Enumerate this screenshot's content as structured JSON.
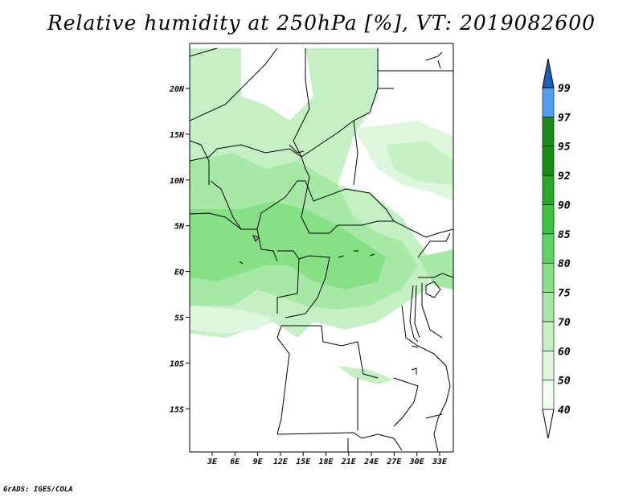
{
  "title": "Relative humidity at 250hPa [%], VT: 2019082600",
  "credit": "GrADS: IGES/COLA",
  "map": {
    "lat_labels": [
      "20N",
      "15N",
      "10N",
      "5N",
      "EQ",
      "5S",
      "10S",
      "15S"
    ],
    "lon_labels": [
      "3E",
      "6E",
      "9E",
      "12E",
      "15E",
      "18E",
      "21E",
      "24E",
      "27E",
      "30E",
      "33E"
    ]
  },
  "colorbar": {
    "levels": [
      "40",
      "50",
      "60",
      "70",
      "75",
      "80",
      "85",
      "90",
      "92",
      "95",
      "97",
      "99"
    ],
    "colors": [
      "#f0fff0",
      "#dcf7dc",
      "#c4f0c4",
      "#a6e8a6",
      "#86e086",
      "#5fd35f",
      "#3fc23f",
      "#27a927",
      "#159015",
      "#1a8a1a",
      "#4da0f0",
      "#2a78dc",
      "#1a5ec0"
    ]
  },
  "chart_data": {
    "type": "heatmap",
    "title": "Relative humidity at 250hPa [%], VT: 2019082600",
    "variable": "Relative humidity",
    "level": "250hPa",
    "units": "%",
    "valid_time": "2019082600",
    "lon_range": [
      0,
      35
    ],
    "lat_range": [
      -20,
      25
    ],
    "contour_levels": [
      40,
      50,
      60,
      70,
      75,
      80,
      85,
      90,
      92,
      95,
      97,
      99
    ]
  }
}
